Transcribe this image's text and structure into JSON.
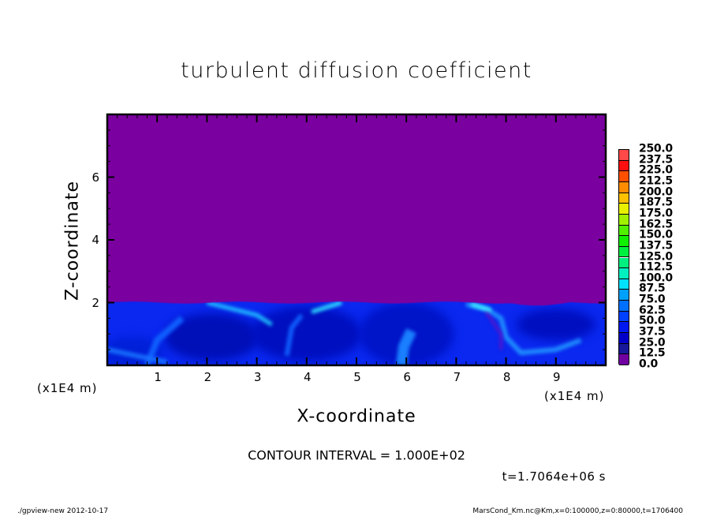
{
  "chart_data": {
    "type": "heatmap",
    "title": "turbulent diffusion coefficient",
    "xlabel": "X-coordinate",
    "ylabel": "Z-coordinate",
    "x_unit_label": "(x1E4 m)",
    "x_unit_label_right": "(x1E4 m)",
    "xlim": [
      0,
      10
    ],
    "ylim": [
      0,
      8
    ],
    "x_ticks": [
      "1",
      "2",
      "3",
      "4",
      "5",
      "6",
      "7",
      "8",
      "9"
    ],
    "y_ticks": [
      "2",
      "4",
      "6"
    ],
    "colorbar": {
      "levels": [
        "0.0",
        "12.5",
        "25.0",
        "37.5",
        "50.0",
        "62.5",
        "75.0",
        "87.5",
        "100.0",
        "112.5",
        "125.0",
        "137.5",
        "150.0",
        "162.5",
        "175.0",
        "187.5",
        "200.0",
        "212.5",
        "225.0",
        "237.5",
        "250.0"
      ],
      "colors": [
        "#7000a0",
        "#18189a",
        "#0000c8",
        "#0018f0",
        "#0040ff",
        "#0070ff",
        "#00a0ff",
        "#00e0ff",
        "#00f0c0",
        "#00f080",
        "#00f040",
        "#10f000",
        "#50f000",
        "#a0f000",
        "#e8f000",
        "#ffc000",
        "#ff8c00",
        "#ff5000",
        "#ff1010",
        "#ff4848",
        "#ff8888"
      ]
    },
    "background_color": "#7b00a0",
    "annotation_contour": "CONTOUR INTERVAL = 1.000E+02",
    "annotation_time": "t=1.7064e+06 s"
  },
  "footer": {
    "left": "./gpview-new   2012-10-17",
    "right": "MarsCond_Km.nc@Km,x=0:100000,z=0:80000,t=1706400"
  }
}
